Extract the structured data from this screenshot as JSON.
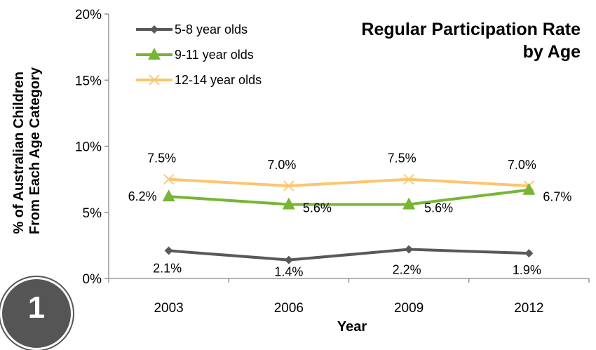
{
  "chart_data": {
    "type": "line",
    "title_line1": "Regular Participation Rate",
    "title_line2": "by Age",
    "xlabel": "Year",
    "ylabel_line1": "% of Australian Children",
    "ylabel_line2": "From  Each Age Category",
    "categories": [
      "2003",
      "2006",
      "2009",
      "2012"
    ],
    "ylim": [
      0,
      20
    ],
    "yticks": [
      0,
      5,
      10,
      15,
      20
    ],
    "ytick_labels": [
      "0%",
      "5%",
      "10%",
      "15%",
      "20%"
    ],
    "grid": false,
    "legend_position": "top-left",
    "series": [
      {
        "name": "5-8 year olds",
        "values": [
          2.1,
          1.4,
          2.2,
          1.9
        ],
        "labels": [
          "2.1%",
          "1.4%",
          "2.2%",
          "1.9%"
        ],
        "color": "#595959",
        "marker": "diamond"
      },
      {
        "name": "9-11 year olds",
        "values": [
          6.2,
          5.6,
          5.6,
          6.7
        ],
        "labels": [
          "6.2%",
          "5.6%",
          "5.6%",
          "6.7%"
        ],
        "color": "#77B633",
        "marker": "triangle"
      },
      {
        "name": "12-14 year olds",
        "values": [
          7.5,
          7.0,
          7.5,
          7.0
        ],
        "labels": [
          "7.5%",
          "7.0%",
          "7.5%",
          "7.0%"
        ],
        "color": "#FAC66E",
        "marker": "x"
      }
    ]
  },
  "badge": {
    "text": "1",
    "color": "#555555"
  }
}
